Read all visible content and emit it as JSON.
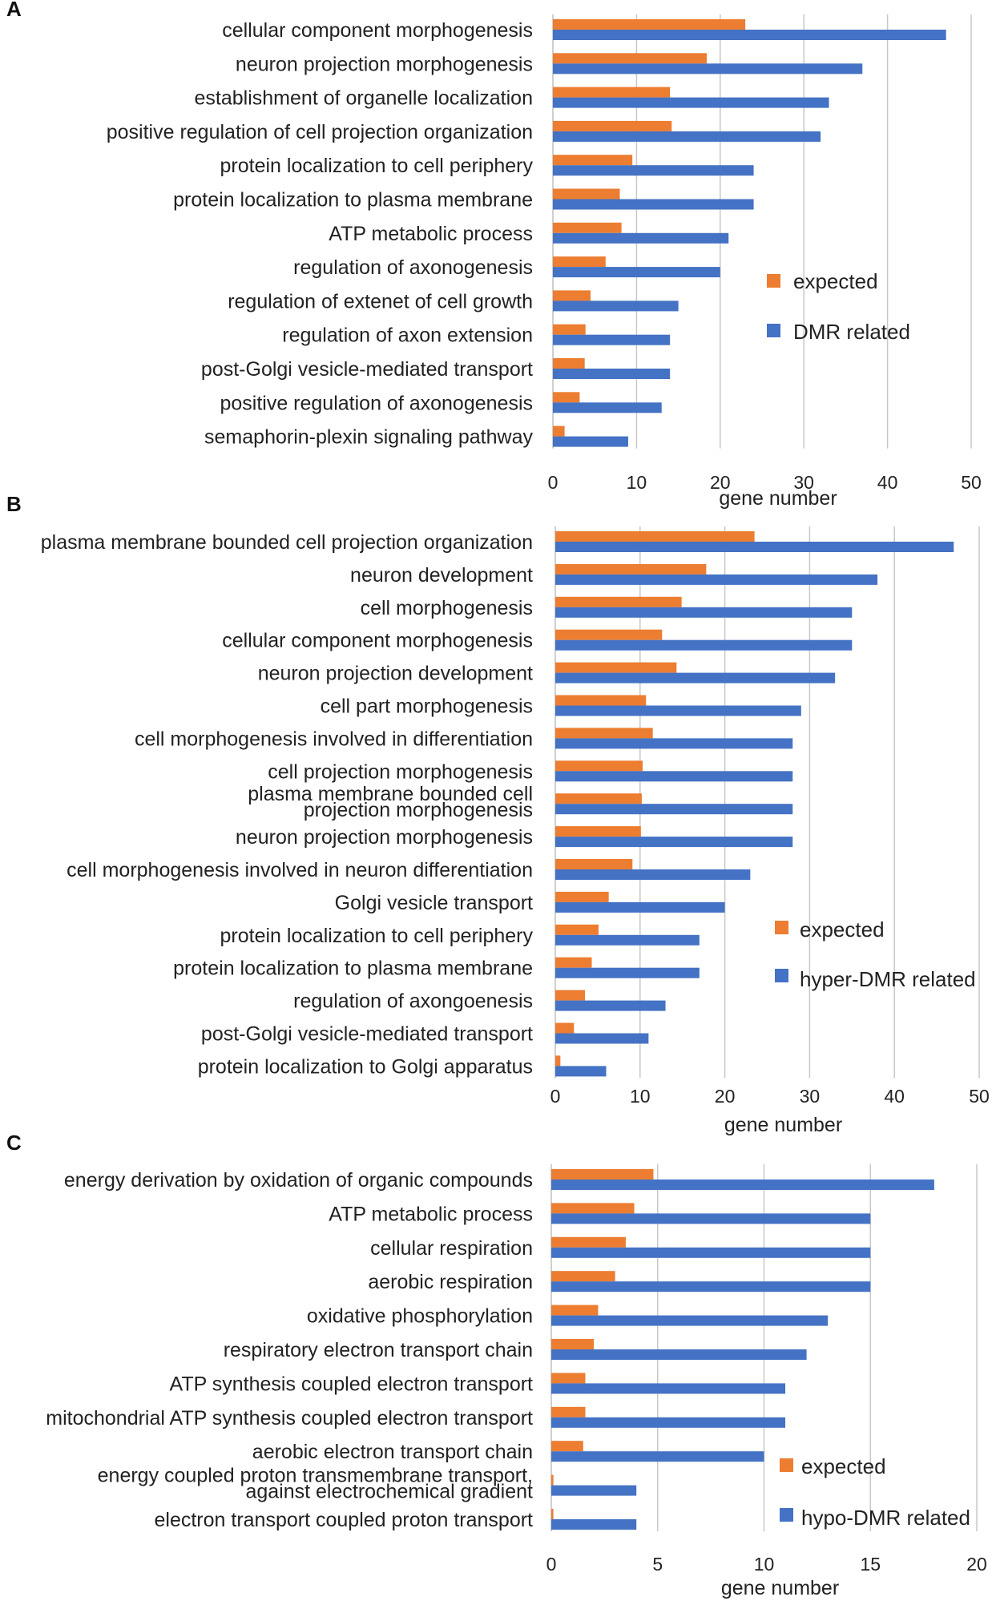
{
  "colors": {
    "expected": "#ED7D31",
    "related": "#4472C4",
    "grid": "#C8C8C8"
  },
  "chart_data": [
    {
      "panel": "A",
      "type": "bar",
      "orientation": "horizontal",
      "xlabel": "gene number",
      "xlim": [
        0,
        50
      ],
      "xticks": [
        "0",
        "10",
        "20",
        "30",
        "40",
        "50"
      ],
      "grid": true,
      "legend_position": "right",
      "categories": [
        "cellular component morphogenesis",
        "neuron projection morphogenesis",
        "establishment of organelle localization",
        "positive regulation of cell projection organization",
        "protein localization to cell periphery",
        "protein localization to plasma membrane",
        "ATP metabolic process",
        "regulation of axonogenesis",
        "regulation of extenet of cell growth",
        "regulation of axon extension",
        "post-Golgi vesicle-mediated transport",
        "positive regulation of axonogenesis",
        "semaphorin-plexin signaling pathway"
      ],
      "series": [
        {
          "name": "expected",
          "values": [
            23,
            18.4,
            14,
            14.2,
            9.5,
            8,
            8.2,
            6.3,
            4.5,
            3.9,
            3.8,
            3.2,
            1.4
          ]
        },
        {
          "name": "DMR related",
          "values": [
            47,
            37,
            33,
            32,
            24,
            24,
            21,
            20,
            15,
            14,
            14,
            13,
            9
          ]
        }
      ]
    },
    {
      "panel": "B",
      "type": "bar",
      "orientation": "horizontal",
      "xlabel": "gene number",
      "xlim": [
        0,
        50
      ],
      "xticks": [
        "0",
        "10",
        "20",
        "30",
        "40",
        "50"
      ],
      "grid": true,
      "legend_position": "right",
      "categories": [
        "plasma membrane bounded cell projection organization",
        "neuron development",
        "cell morphogenesis",
        "cellular component morphogenesis",
        "neuron projection development",
        "cell part morphogenesis",
        "cell morphogenesis involved in differentiation",
        "cell projection morphogenesis",
        "plasma membrane bounded cell projection morphogenesis",
        "neuron projection morphogenesis",
        "cell morphogenesis involved in neuron differentiation",
        "Golgi vesicle transport",
        "protein localization to cell periphery",
        "protein localization to plasma membrane",
        "regulation of axongoenesis",
        "post-Golgi vesicle-mediated transport",
        "protein localization to Golgi apparatus"
      ],
      "series": [
        {
          "name": "expected",
          "values": [
            23.5,
            17.8,
            14.9,
            12.6,
            14.3,
            10.7,
            11.5,
            10.3,
            10.2,
            10.1,
            9.1,
            6.3,
            5.1,
            4.3,
            3.5,
            2.2,
            0.6
          ]
        },
        {
          "name": "hyper-DMR related",
          "values": [
            47,
            38,
            35,
            35,
            33,
            29,
            28,
            28,
            28,
            28,
            23,
            20,
            17,
            17,
            13,
            11,
            6
          ]
        }
      ]
    },
    {
      "panel": "C",
      "type": "bar",
      "orientation": "horizontal",
      "xlabel": "gene number",
      "xlim": [
        0,
        20
      ],
      "xticks": [
        "0",
        "5",
        "10",
        "15",
        "20"
      ],
      "grid": true,
      "legend_position": "right",
      "categories": [
        "energy derivation by oxidation of organic compounds",
        "ATP metabolic process",
        "cellular respiration",
        "aerobic respiration",
        "oxidative phosphorylation",
        "respiratory electron transport chain",
        "ATP synthesis coupled electron transport",
        "mitochondrial ATP synthesis coupled electron transport",
        "aerobic electron transport chain",
        "energy coupled proton transmembrane transport, against electrochemical gradient",
        "electron transport coupled proton transport"
      ],
      "series": [
        {
          "name": "expected",
          "values": [
            4.8,
            3.9,
            3.5,
            3.0,
            2.2,
            2.0,
            1.6,
            1.6,
            1.5,
            0.1,
            0.1
          ]
        },
        {
          "name": "hypo-DMR related",
          "values": [
            18,
            15,
            15,
            15,
            13,
            12,
            11,
            11,
            10,
            4,
            4
          ]
        }
      ]
    }
  ]
}
